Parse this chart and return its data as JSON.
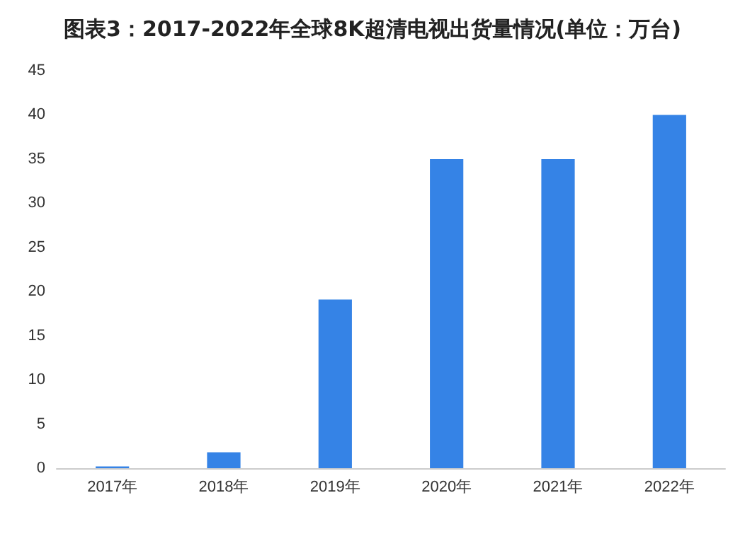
{
  "chart_data": {
    "type": "bar",
    "title": "图表3：2017-2022年全球8K超清电视出货量情况(单位：万台)",
    "categories": [
      "2017年",
      "2018年",
      "2019年",
      "2020年",
      "2021年",
      "2022年"
    ],
    "values": [
      0.2,
      1.8,
      19.1,
      35,
      35,
      40
    ],
    "color": "#3583e6",
    "ylim": [
      0,
      45
    ],
    "yticks": [
      0,
      5,
      10,
      15,
      20,
      25,
      30,
      35,
      40,
      45
    ],
    "grid": false
  }
}
